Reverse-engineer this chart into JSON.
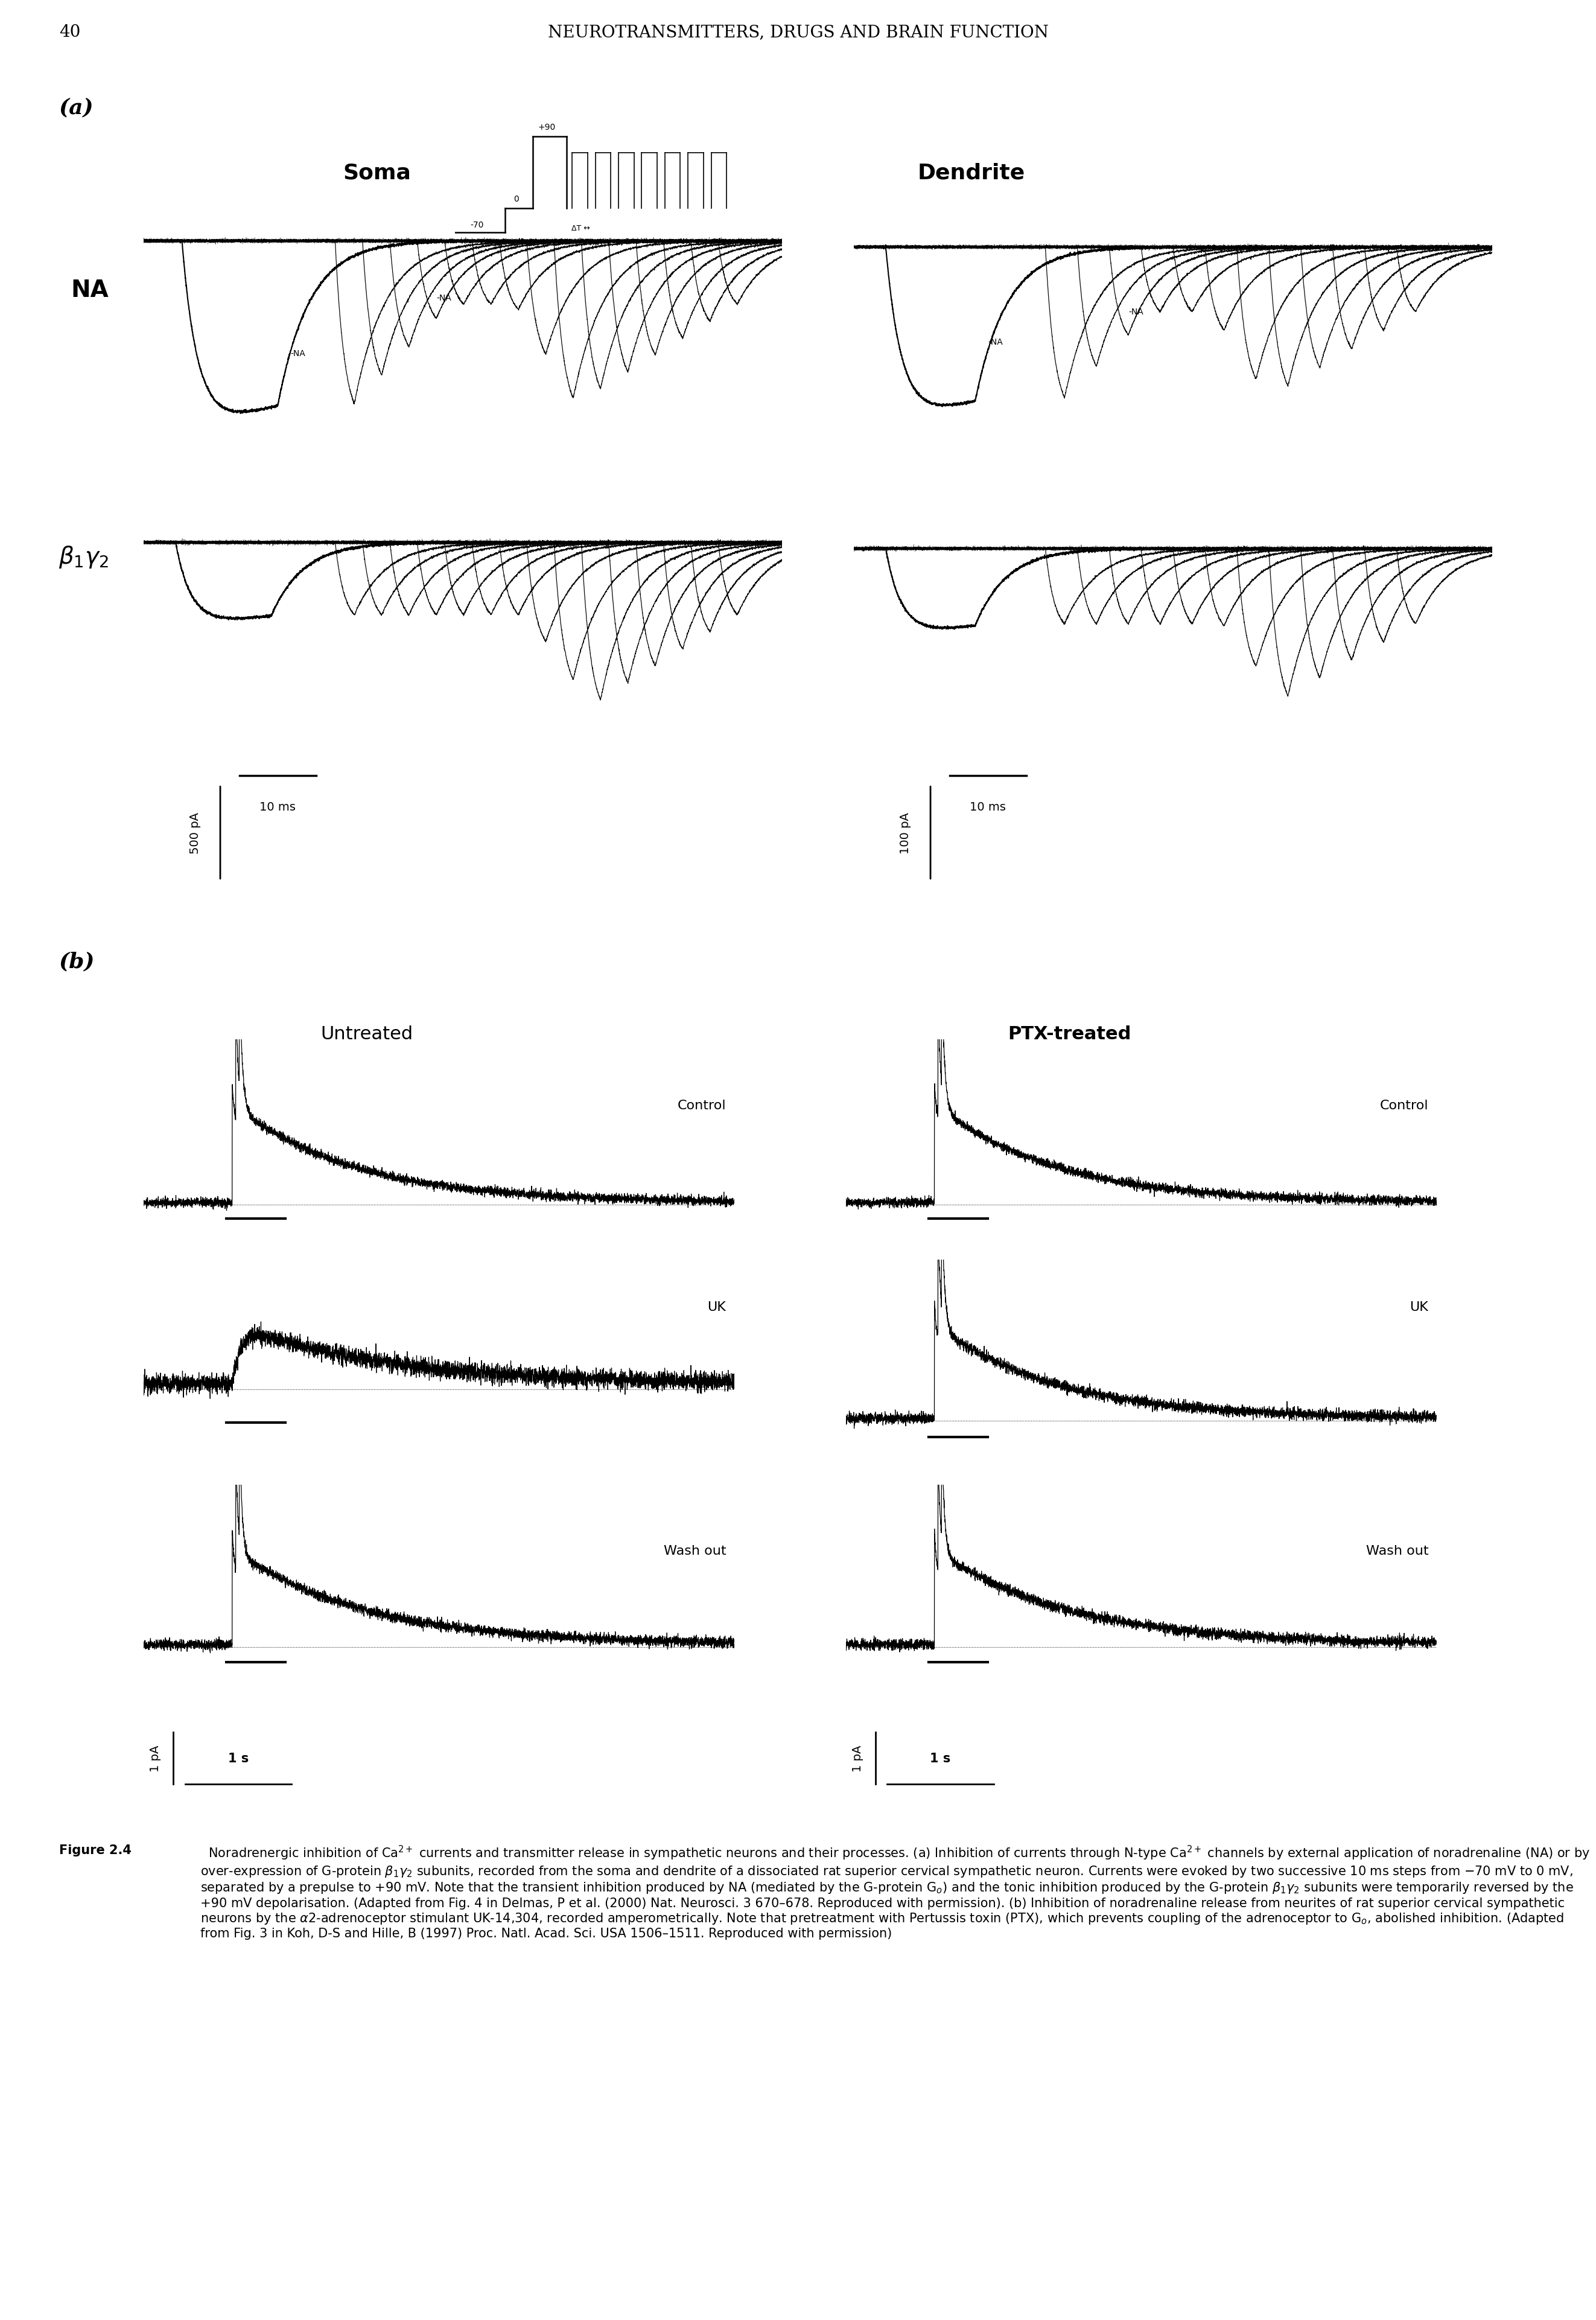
{
  "page_number": "40",
  "header_title": "NEUROTRANSMITTERS, DRUGS AND BRAIN FUNCTION",
  "panel_a_label": "(a)",
  "panel_b_label": "(b)",
  "soma_label": "Soma",
  "dendrite_label": "Dendrite",
  "na_label": "NA",
  "beta_label": "$\\beta_1\\gamma_2$",
  "untreated_label": "Untreated",
  "ptx_label": "PTX-treated",
  "control_label": "Control",
  "uk_label": "UK",
  "washout_label": "Wash out",
  "scale_500pA": "500 pA",
  "scale_10ms": "10 ms",
  "scale_100pA": "100 pA",
  "scale_1pA": "1 pA",
  "scale_1s": "1 s",
  "bg_color": "#ffffff",
  "text_color": "#000000",
  "caption_bold": "Figure 2.4",
  "caption_normal": "  Noradrenergic inhibition of Ca$^{2+}$ currents and transmitter release in sympathetic neurons and their processes. (a) Inhibition of currents through N-type Ca$^{2+}$ channels by external application of noradrenaline (NA) or by over-expression of G-protein $\\beta_1\\gamma_2$ subunits, recorded from the soma and dendrite of a dissociated rat superior cervical sympathetic neuron. Currents were evoked by two successive 10 ms steps from −70 mV to 0 mV, separated by a prepulse to +90 mV. Note that the transient inhibition produced by NA (mediated by the G-protein G$_o$) and the tonic inhibition produced by the G-protein $\\beta_1\\gamma_2$ subunits were temporarily reversed by the +90 mV depolarisation. (Adapted from Fig. 4 in Delmas, P et al. (2000) Nat. Neurosci. 3 670–678. Reproduced with permission). (b) Inhibition of noradrenaline release from neurites of rat superior cervical sympathetic neurons by the $\\alpha$2-adrenoceptor stimulant UK-14,304, recorded amperometrically. Note that pretreatment with Pertussis toxin (PTX), which prevents coupling of the adrenoceptor to G$_o$, abolished inhibition. (Adapted from Fig. 3 in Koh, D-S and Hille, B (1997) Proc. Natl. Acad. Sci. USA 1506–1511. Reproduced with permission)"
}
